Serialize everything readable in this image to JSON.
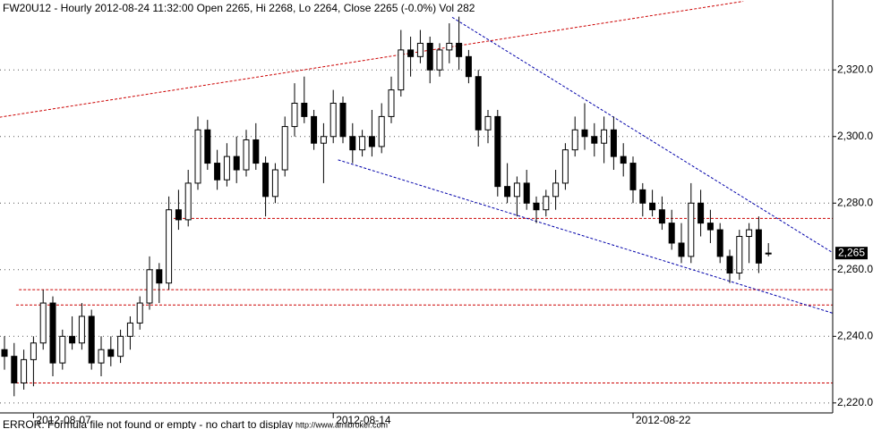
{
  "chart_data": {
    "type": "candlestick",
    "title": "FW20U12 - Hourly 2012-08-24 11:32:00 Open 2265, Hi 2268, Lo 2264, Close 2265 (-0.0%) Vol 282",
    "categories": [
      null,
      null,
      null,
      "2012-08-07",
      null,
      null,
      null,
      null,
      null,
      null,
      null,
      null,
      null,
      null,
      null,
      null,
      null,
      null,
      null,
      null,
      null,
      null,
      null,
      null,
      null,
      null,
      null,
      null,
      null,
      null,
      null,
      null,
      null,
      null,
      "2012-08-14",
      null,
      null,
      null,
      null,
      null,
      null,
      null,
      null,
      null,
      null,
      null,
      null,
      null,
      null,
      null,
      null,
      null,
      null,
      null,
      null,
      null,
      null,
      null,
      null,
      null,
      null,
      null,
      null,
      null,
      null,
      "2012-08-22",
      null,
      null,
      null,
      null,
      null,
      null,
      null,
      null,
      null,
      null,
      null,
      null,
      null,
      null
    ],
    "ohlc": [
      [
        2236,
        2240,
        2230,
        2234
      ],
      [
        2234,
        2238,
        2222,
        2226
      ],
      [
        2226,
        2236,
        2224,
        2233
      ],
      [
        2233,
        2240,
        2225,
        2238
      ],
      [
        2238,
        2254,
        2236,
        2250
      ],
      [
        2250,
        2252,
        2228,
        2232
      ],
      [
        2232,
        2242,
        2230,
        2240
      ],
      [
        2240,
        2246,
        2236,
        2238
      ],
      [
        2238,
        2250,
        2236,
        2246
      ],
      [
        2246,
        2248,
        2230,
        2232
      ],
      [
        2232,
        2240,
        2228,
        2236
      ],
      [
        2236,
        2240,
        2231,
        2234
      ],
      [
        2234,
        2242,
        2232,
        2240
      ],
      [
        2240,
        2246,
        2236,
        2244
      ],
      [
        2244,
        2252,
        2242,
        2250
      ],
      [
        2250,
        2264,
        2248,
        2260
      ],
      [
        2260,
        2262,
        2250,
        2256
      ],
      [
        2256,
        2282,
        2254,
        2278
      ],
      [
        2278,
        2284,
        2272,
        2275
      ],
      [
        2275,
        2290,
        2273,
        2286
      ],
      [
        2286,
        2306,
        2284,
        2302
      ],
      [
        2302,
        2305,
        2290,
        2292
      ],
      [
        2292,
        2296,
        2284,
        2287
      ],
      [
        2287,
        2298,
        2285,
        2294
      ],
      [
        2294,
        2300,
        2286,
        2290
      ],
      [
        2290,
        2302,
        2288,
        2299
      ],
      [
        2299,
        2304,
        2290,
        2292
      ],
      [
        2292,
        2294,
        2276,
        2282
      ],
      [
        2282,
        2292,
        2280,
        2290
      ],
      [
        2290,
        2306,
        2288,
        2303
      ],
      [
        2303,
        2316,
        2300,
        2310
      ],
      [
        2310,
        2318,
        2304,
        2306
      ],
      [
        2306,
        2308,
        2296,
        2298
      ],
      [
        2298,
        2304,
        2286,
        2300
      ],
      [
        2300,
        2314,
        2298,
        2310
      ],
      [
        2310,
        2312,
        2298,
        2300
      ],
      [
        2300,
        2304,
        2292,
        2296
      ],
      [
        2296,
        2302,
        2294,
        2300
      ],
      [
        2300,
        2308,
        2294,
        2297
      ],
      [
        2297,
        2310,
        2295,
        2306
      ],
      [
        2306,
        2318,
        2304,
        2314
      ],
      [
        2314,
        2332,
        2312,
        2326
      ],
      [
        2326,
        2330,
        2318,
        2324
      ],
      [
        2324,
        2332,
        2322,
        2328
      ],
      [
        2328,
        2330,
        2316,
        2320
      ],
      [
        2320,
        2328,
        2318,
        2326
      ],
      [
        2326,
        2334,
        2322,
        2328
      ],
      [
        2328,
        2336,
        2320,
        2324
      ],
      [
        2324,
        2326,
        2316,
        2318
      ],
      [
        2318,
        2320,
        2297,
        2302
      ],
      [
        2302,
        2308,
        2298,
        2306
      ],
      [
        2306,
        2308,
        2282,
        2285
      ],
      [
        2285,
        2292,
        2280,
        2282
      ],
      [
        2282,
        2288,
        2276,
        2286
      ],
      [
        2286,
        2290,
        2278,
        2280
      ],
      [
        2280,
        2282,
        2274,
        2278
      ],
      [
        2278,
        2284,
        2276,
        2282
      ],
      [
        2282,
        2290,
        2278,
        2286
      ],
      [
        2286,
        2298,
        2284,
        2296
      ],
      [
        2296,
        2306,
        2294,
        2302
      ],
      [
        2302,
        2310,
        2296,
        2300
      ],
      [
        2300,
        2304,
        2294,
        2298
      ],
      [
        2298,
        2306,
        2292,
        2302
      ],
      [
        2302,
        2306,
        2290,
        2294
      ],
      [
        2294,
        2298,
        2288,
        2292
      ],
      [
        2292,
        2294,
        2280,
        2284
      ],
      [
        2284,
        2286,
        2276,
        2280
      ],
      [
        2280,
        2284,
        2276,
        2278
      ],
      [
        2278,
        2282,
        2272,
        2274
      ],
      [
        2274,
        2278,
        2266,
        2268
      ],
      [
        2268,
        2274,
        2262,
        2264
      ],
      [
        2264,
        2286,
        2262,
        2280
      ],
      [
        2280,
        2284,
        2270,
        2274
      ],
      [
        2274,
        2278,
        2268,
        2272
      ],
      [
        2272,
        2274,
        2262,
        2264
      ],
      [
        2264,
        2266,
        2256,
        2259
      ],
      [
        2259,
        2272,
        2257,
        2270
      ],
      [
        2270,
        2274,
        2262,
        2272
      ],
      [
        2272,
        2276,
        2259,
        2262
      ],
      [
        2265,
        2268,
        2264,
        2265
      ]
    ],
    "ylim": [
      2217,
      2341
    ],
    "yticks": [
      {
        "value": 2220,
        "label": "2,220.0"
      },
      {
        "value": 2240,
        "label": "2,240.0"
      },
      {
        "value": 2260,
        "label": "2,260.0"
      },
      {
        "value": 2280,
        "label": "2,280.0"
      },
      {
        "value": 2300,
        "label": "2,300.0"
      },
      {
        "value": 2320,
        "label": "2,320.0"
      }
    ],
    "grid": true,
    "up_color": "#ffffff",
    "down_color": "#000000",
    "trendlines": [
      {
        "color": "#cc0000",
        "x": [
          -0.5,
          76.4
        ],
        "y": [
          2305.8,
          2340.6
        ]
      },
      {
        "color": "#0000aa",
        "x": [
          46.3,
          85.6
        ],
        "y": [
          2335.8,
          2265.2
        ]
      },
      {
        "color": "#0000aa",
        "x": [
          34.5,
          85.6
        ],
        "y": [
          2293,
          2247
        ]
      }
    ],
    "hlines": [
      {
        "color": "#cc0000",
        "value": 2275.4,
        "from": 17.5
      },
      {
        "color": "#cc0000",
        "value": 2254,
        "from": 1.5
      },
      {
        "color": "#cc0000",
        "value": 2249.4,
        "from": 1.2
      },
      {
        "color": "#cc0000",
        "value": 2226,
        "from": 1.2
      }
    ],
    "last_price": {
      "value": 2265,
      "label": "2,265"
    }
  },
  "footer": {
    "error": "ERROR: Formula file not found or empty - no chart to display",
    "url": "http://www.amibroker.com"
  }
}
